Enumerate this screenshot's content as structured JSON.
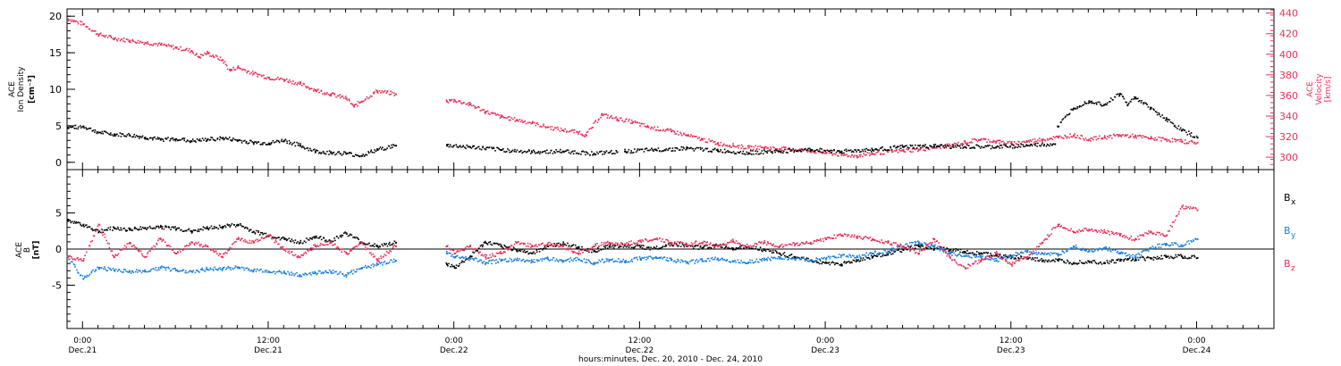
{
  "colors": {
    "black": "#000000",
    "pink": "#e8315a",
    "blue": "#1a7fdc",
    "frame": "#000000"
  },
  "x_axis": {
    "title": "hours:minutes, Dec. 20, 2010 - Dec. 24, 2010",
    "ticks": [
      {
        "hours": 0,
        "time": "0:00",
        "date": "Dec.21"
      },
      {
        "hours": 12,
        "time": "12:00",
        "date": "Dec.21"
      },
      {
        "hours": 24,
        "time": "0:00",
        "date": "Dec.22"
      },
      {
        "hours": 36,
        "time": "12:00",
        "date": "Dec.22"
      },
      {
        "hours": 48,
        "time": "0:00",
        "date": "Dec.23"
      },
      {
        "hours": 60,
        "time": "12:00",
        "date": "Dec.23"
      },
      {
        "hours": 72,
        "time": "0:00",
        "date": "Dec.24"
      }
    ]
  },
  "chart_data": [
    {
      "type": "scatter",
      "xlim": [
        -1,
        77
      ],
      "x_unit": "hours from 0:00 Dec.21",
      "left_axis": {
        "label_lines": [
          "ACE",
          "Ion Density",
          "[cm⁻³]"
        ],
        "ylim": [
          -1,
          21
        ],
        "ticks": [
          0,
          5,
          10,
          15,
          20
        ]
      },
      "right_axis": {
        "label_lines": [
          "ACE",
          "Velocity",
          "[km/s]"
        ],
        "ylim": [
          288,
          444
        ],
        "ticks": [
          300,
          320,
          340,
          360,
          380,
          400,
          420,
          440
        ]
      },
      "series": [
        {
          "name": "Ion Density",
          "axis": "left",
          "color": "#000000",
          "segments": [
            {
              "x": [
                -1,
                0,
                1,
                2,
                3,
                4,
                5,
                6,
                7,
                8,
                9,
                10,
                11,
                12,
                13,
                14,
                15,
                16,
                17,
                18,
                19,
                20.2
              ],
              "y": [
                4.8,
                5.0,
                4.2,
                3.9,
                3.8,
                3.5,
                3.2,
                3.3,
                3.0,
                3.2,
                3.4,
                3.1,
                2.8,
                2.7,
                3.1,
                2.4,
                1.6,
                1.4,
                1.3,
                1.0,
                1.8,
                2.4
              ]
            },
            {
              "x": [
                23.5,
                25,
                27,
                29,
                31,
                33,
                34.5
              ],
              "y": [
                2.4,
                2.2,
                1.8,
                1.5,
                1.6,
                1.3,
                1.5
              ]
            },
            {
              "x": [
                35,
                37,
                39,
                41,
                43,
                45,
                47,
                49,
                51,
                53,
                55,
                57,
                59,
                61,
                62.8
              ],
              "y": [
                1.6,
                1.8,
                2.0,
                1.7,
                1.4,
                1.6,
                1.8,
                1.6,
                1.8,
                2.2,
                2.3,
                2.2,
                2.2,
                2.4,
                2.6
              ]
            },
            {
              "x": [
                63,
                64,
                65,
                66,
                67,
                67.5,
                68,
                69,
                70,
                71,
                72
              ],
              "y": [
                5.0,
                7.5,
                8.5,
                8.0,
                9.5,
                8.0,
                9.0,
                7.5,
                6.0,
                4.5,
                3.5
              ]
            }
          ]
        },
        {
          "name": "Velocity",
          "axis": "right",
          "color": "#e8315a",
          "segments": [
            {
              "x": [
                -1,
                0,
                1,
                2,
                3,
                4,
                5,
                6,
                7,
                7.5,
                8,
                9,
                9.5,
                10,
                11,
                12,
                13,
                14,
                15,
                16,
                17,
                17.5,
                18,
                19,
                20.2
              ],
              "y": [
                435,
                430,
                420,
                416,
                414,
                412,
                410,
                407,
                404,
                398,
                402,
                395,
                385,
                388,
                382,
                378,
                376,
                372,
                366,
                362,
                358,
                350,
                355,
                365,
                362
              ]
            },
            {
              "x": [
                23.5,
                24,
                25,
                26,
                27,
                28,
                29,
                30,
                31,
                32,
                32.5,
                33.5,
                34.5,
                35.5,
                36.5,
                38,
                39,
                40,
                41,
                42,
                43,
                44,
                45,
                46,
                47,
                48,
                49,
                50,
                51,
                52,
                53,
                54,
                55,
                56,
                57,
                58,
                59,
                60,
                61,
                62,
                63,
                64,
                65,
                66,
                67,
                68,
                69,
                70,
                71,
                72
              ],
              "y": [
                355,
                356,
                352,
                345,
                340,
                337,
                334,
                330,
                327,
                325,
                322,
                342,
                338,
                335,
                330,
                326,
                322,
                318,
                314,
                312,
                310,
                310,
                309,
                308,
                307,
                305,
                303,
                302,
                304,
                306,
                307,
                308,
                310,
                312,
                315,
                318,
                316,
                314,
                316,
                318,
                320,
                322,
                318,
                320,
                322,
                321,
                319,
                318,
                316,
                315
              ]
            }
          ]
        }
      ]
    },
    {
      "type": "scatter",
      "xlim": [
        -1,
        77
      ],
      "x_unit": "hours from 0:00 Dec.21",
      "left_axis": {
        "label_lines": [
          "ACE",
          "B",
          "[nT]"
        ],
        "ylim": [
          -11,
          11
        ],
        "ticks": [
          -5,
          0,
          5
        ]
      },
      "legend": [
        {
          "label": "B",
          "sub": "x",
          "color": "#000000"
        },
        {
          "label": "B",
          "sub": "y",
          "color": "#1a7fdc"
        },
        {
          "label": "B",
          "sub": "z",
          "color": "#e8315a"
        }
      ],
      "series": [
        {
          "name": "Bx",
          "color": "#000000",
          "segments": [
            {
              "x": [
                -1,
                0,
                1,
                2,
                3,
                4,
                5,
                6,
                7,
                8,
                9,
                10,
                11,
                12,
                13,
                14,
                15,
                16,
                17,
                18,
                19,
                20.2
              ],
              "y": [
                4.0,
                3.5,
                2.5,
                3.0,
                2.8,
                3.0,
                3.2,
                2.9,
                2.6,
                3.0,
                3.2,
                3.5,
                2.5,
                2.0,
                1.5,
                1.0,
                1.8,
                1.2,
                2.3,
                1.0,
                0.5,
                1.0
              ]
            },
            {
              "x": [
                23.5,
                24,
                25,
                26,
                27,
                28,
                29,
                30,
                31,
                32,
                33,
                34,
                35,
                36,
                37,
                38,
                39,
                40,
                41,
                42,
                43,
                44,
                45,
                46,
                47,
                48,
                49,
                50,
                51,
                52,
                53,
                54,
                55,
                56,
                57,
                58,
                59,
                60,
                61,
                62,
                63,
                64,
                65,
                66,
                67,
                68,
                69,
                70,
                71,
                72
              ],
              "y": [
                -2.0,
                -2.5,
                -1.0,
                1.0,
                0.5,
                0.0,
                -0.5,
                0.5,
                0.8,
                0.3,
                -0.2,
                0.5,
                0.6,
                0.4,
                0.2,
                0.8,
                0.5,
                0.3,
                0.6,
                0.2,
                0.5,
                0.0,
                -0.5,
                -1.0,
                -1.5,
                -1.8,
                -2.0,
                -1.5,
                -1.0,
                -0.5,
                0.0,
                0.5,
                0.2,
                0.0,
                -0.3,
                -0.5,
                -0.8,
                -1.0,
                -1.2,
                -1.5,
                -1.5,
                -1.8,
                -1.6,
                -1.8,
                -1.5,
                -1.3,
                -1.2,
                -1.0,
                -0.9,
                -1.1
              ]
            }
          ]
        },
        {
          "name": "By",
          "color": "#1a7fdc",
          "segments": [
            {
              "x": [
                -1,
                0,
                1,
                2,
                3,
                4,
                5,
                6,
                7,
                8,
                9,
                10,
                11,
                12,
                13,
                14,
                15,
                16,
                17,
                18,
                19,
                20.2
              ],
              "y": [
                -1.0,
                -4.0,
                -2.5,
                -2.8,
                -3.0,
                -3.0,
                -2.5,
                -2.8,
                -3.0,
                -2.7,
                -2.6,
                -2.5,
                -2.8,
                -3.0,
                -3.2,
                -3.5,
                -3.2,
                -3.0,
                -3.5,
                -2.5,
                -2.0,
                -1.5
              ]
            },
            {
              "x": [
                23.5,
                24,
                25,
                26,
                27,
                28,
                29,
                30,
                31,
                32,
                33,
                34,
                35,
                36,
                37,
                38,
                39,
                40,
                41,
                42,
                43,
                44,
                45,
                46,
                47,
                48,
                49,
                50,
                51,
                52,
                53,
                54,
                55,
                56,
                57,
                58,
                59,
                60,
                61,
                62,
                63,
                64,
                65,
                66,
                67,
                68,
                69,
                70,
                71,
                72
              ],
              "y": [
                -0.5,
                -1.0,
                -1.2,
                -1.8,
                -1.5,
                -1.4,
                -1.6,
                -1.2,
                -1.5,
                -1.3,
                -1.8,
                -1.4,
                -1.6,
                -1.2,
                -1.0,
                -1.4,
                -1.8,
                -1.5,
                -1.2,
                -1.6,
                -1.7,
                -1.4,
                -1.0,
                -1.3,
                -1.5,
                -1.2,
                -0.8,
                -1.0,
                -0.5,
                -0.2,
                0.5,
                1.0,
                0.5,
                -0.5,
                -0.8,
                -1.0,
                -1.5,
                -0.8,
                -0.3,
                -0.5,
                -0.8,
                0.5,
                -0.2,
                0.3,
                -0.5,
                -1.0,
                0.2,
                0.8,
                0.6,
                1.5
              ]
            }
          ]
        },
        {
          "name": "Bz",
          "color": "#e8315a",
          "segments": [
            {
              "x": [
                -1,
                0,
                1,
                2,
                3,
                4,
                5,
                6,
                7,
                8,
                9,
                10,
                11,
                12,
                13,
                14,
                15,
                16,
                17,
                18,
                19,
                20.2
              ],
              "y": [
                -1.0,
                -1.5,
                3.5,
                -1.0,
                1.0,
                -1.0,
                1.5,
                -0.5,
                1.0,
                0.5,
                -1.0,
                1.5,
                1.0,
                2.0,
                0.0,
                -1.0,
                0.5,
                1.0,
                -0.5,
                1.0,
                -1.5,
                0.5
              ]
            },
            {
              "x": [
                23.5,
                24,
                25,
                26,
                27,
                28,
                29,
                30,
                31,
                32,
                33,
                34,
                35,
                36,
                37,
                38,
                39,
                40,
                41,
                42,
                43,
                44,
                45,
                46,
                47,
                48,
                49,
                50,
                51,
                52,
                53,
                54,
                55,
                56,
                57,
                58,
                59,
                60,
                61,
                62,
                63,
                64,
                65,
                66,
                67,
                68,
                69,
                70,
                71,
                72
              ],
              "y": [
                0.5,
                -0.5,
                0.5,
                -1.0,
                -0.5,
                1.0,
                0.5,
                0.8,
                0.5,
                -0.5,
                0.5,
                1.0,
                0.8,
                1.2,
                1.5,
                1.0,
                0.8,
                1.0,
                0.5,
                1.2,
                0.5,
                1.0,
                0.5,
                0.8,
                1.0,
                1.5,
                2.0,
                1.8,
                1.5,
                1.0,
                0.5,
                -0.5,
                1.5,
                -1.0,
                -2.5,
                -1.5,
                -0.5,
                -2.0,
                -1.0,
                1.0,
                3.5,
                2.5,
                2.8,
                2.5,
                2.0,
                1.5,
                2.5,
                2.0,
                6.0,
                5.5
              ]
            }
          ]
        }
      ]
    }
  ]
}
